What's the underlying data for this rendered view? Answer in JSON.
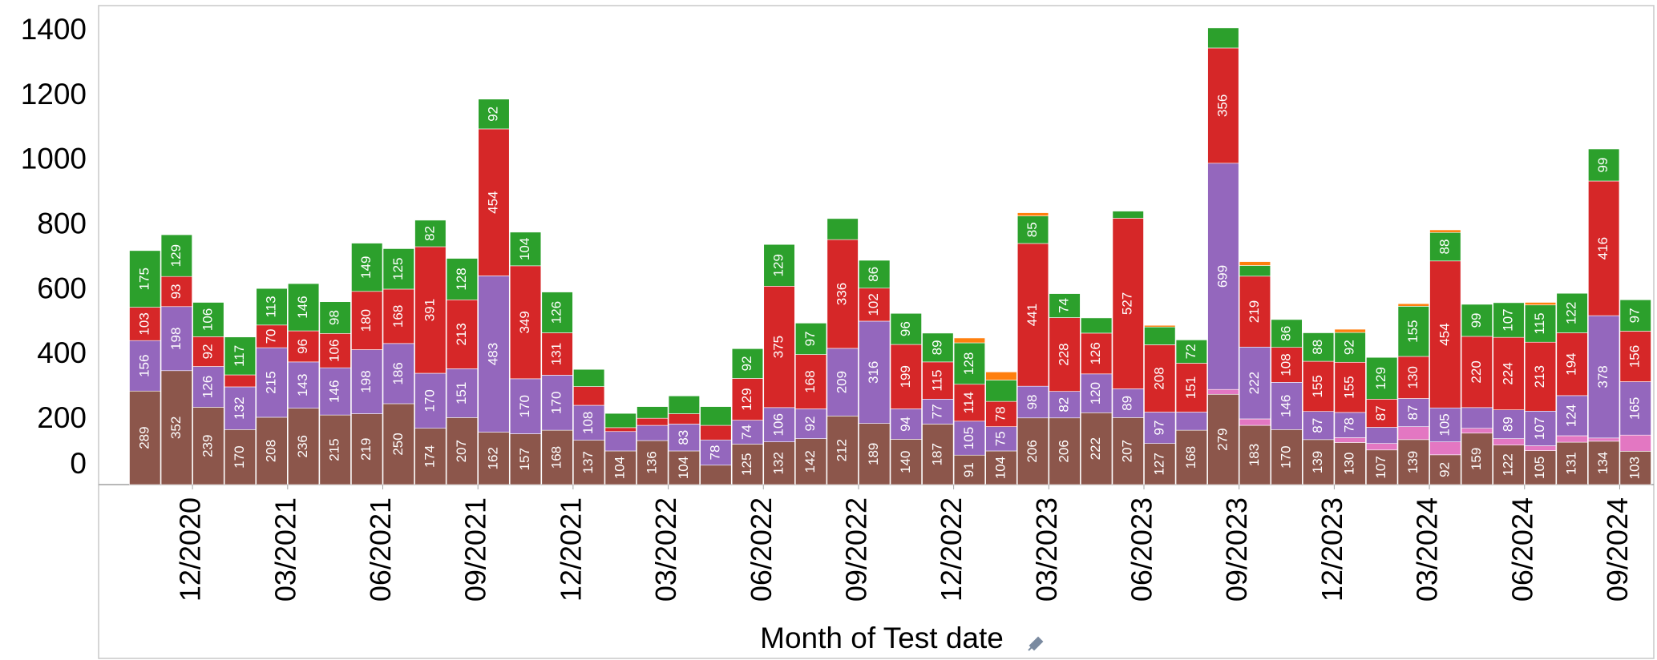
{
  "chart_data": {
    "type": "stacked-bar",
    "x_label": "Month of Test date",
    "categories": [
      null,
      null,
      "12/2020",
      null,
      null,
      "03/2021",
      null,
      null,
      "06/2021",
      null,
      null,
      "09/2021",
      null,
      null,
      "12/2021",
      null,
      null,
      "03/2022",
      null,
      null,
      "06/2022",
      null,
      null,
      "09/2022",
      null,
      null,
      "12/2022",
      null,
      null,
      "03/2023",
      null,
      null,
      "06/2023",
      null,
      null,
      "09/2023",
      null,
      null,
      "12/2023",
      null,
      null,
      "03/2024",
      null,
      null,
      "06/2024",
      null,
      null,
      "09/2024"
    ],
    "series": [
      {
        "color": "#8c564b",
        "values": [
          289,
          352,
          239,
          170,
          208,
          236,
          215,
          219,
          250,
          174,
          207,
          162,
          157,
          168,
          137,
          104,
          136,
          104,
          60,
          125,
          132,
          142,
          212,
          189,
          140,
          187,
          91,
          104,
          206,
          206,
          222,
          207,
          127,
          168,
          279,
          183,
          170,
          139,
          130,
          107,
          139,
          92,
          159,
          122,
          105,
          131,
          134,
          103
        ]
      },
      {
        "color": "#e377c2",
        "values": [
          0,
          0,
          0,
          0,
          0,
          0,
          0,
          0,
          0,
          0,
          0,
          0,
          0,
          0,
          0,
          0,
          0,
          0,
          0,
          0,
          0,
          0,
          0,
          0,
          0,
          0,
          0,
          0,
          0,
          0,
          0,
          0,
          0,
          0,
          15,
          20,
          0,
          0,
          15,
          20,
          40,
          40,
          15,
          20,
          15,
          20,
          10,
          50
        ]
      },
      {
        "color": "#9467bd",
        "values": [
          156,
          198,
          126,
          132,
          215,
          143,
          146,
          198,
          186,
          170,
          151,
          483,
          170,
          170,
          108,
          60,
          47,
          83,
          78,
          74,
          106,
          92,
          209,
          316,
          94,
          77,
          105,
          75,
          98,
          82,
          120,
          89,
          97,
          56,
          699,
          222,
          146,
          87,
          78,
          50,
          87,
          105,
          64,
          89,
          107,
          124,
          378,
          165
        ]
      },
      {
        "color": "#d62728",
        "values": [
          103,
          93,
          92,
          37,
          70,
          96,
          106,
          180,
          168,
          391,
          213,
          454,
          349,
          131,
          58,
          12,
          22,
          32,
          45,
          129,
          375,
          168,
          336,
          102,
          199,
          115,
          114,
          78,
          441,
          228,
          126,
          527,
          208,
          151,
          356,
          219,
          108,
          155,
          155,
          87,
          130,
          454,
          220,
          224,
          213,
          194,
          416,
          156
        ]
      },
      {
        "color": "#2ca02c",
        "values": [
          175,
          129,
          106,
          117,
          113,
          146,
          98,
          149,
          125,
          82,
          128,
          92,
          104,
          126,
          53,
          44,
          36,
          55,
          58,
          92,
          129,
          97,
          65,
          86,
          96,
          89,
          128,
          66,
          85,
          74,
          47,
          22,
          55,
          72,
          62,
          33,
          86,
          88,
          92,
          129,
          155,
          88,
          99,
          107,
          115,
          122,
          99,
          97
        ]
      },
      {
        "color": "#ff7f0e",
        "values": [
          0,
          0,
          0,
          0,
          0,
          0,
          0,
          0,
          0,
          0,
          0,
          0,
          0,
          0,
          0,
          0,
          0,
          0,
          0,
          0,
          0,
          0,
          0,
          0,
          0,
          0,
          15,
          25,
          10,
          0,
          0,
          0,
          5,
          0,
          0,
          12,
          0,
          0,
          10,
          0,
          8,
          8,
          0,
          0,
          8,
          0,
          0,
          0
        ]
      }
    ],
    "ylim": [
      0,
      1480
    ],
    "yticks": [
      0,
      200,
      400,
      600,
      800,
      1000,
      1200,
      1400
    ],
    "grid": false
  }
}
